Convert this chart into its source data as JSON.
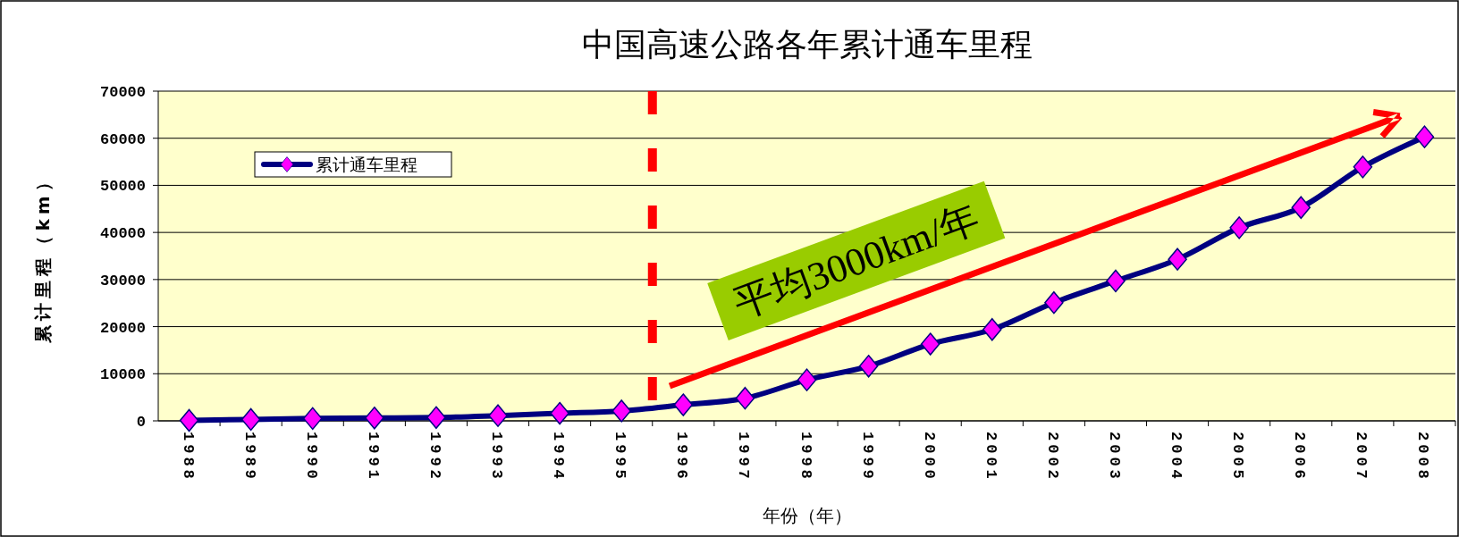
{
  "chart_data": {
    "type": "line",
    "title": "中国高速公路各年累计通车里程",
    "xlabel": "年份（年）",
    "ylabel": "累计里程（km）",
    "x": [
      1988,
      1989,
      1990,
      1991,
      1992,
      1993,
      1994,
      1995,
      1996,
      1997,
      1998,
      1999,
      2000,
      2001,
      2002,
      2003,
      2004,
      2005,
      2006,
      2007,
      2008
    ],
    "series": [
      {
        "name": "累计通车里程",
        "color": "#000080",
        "values": [
          100,
          300,
          500,
          600,
          700,
          1100,
          1600,
          2100,
          3400,
          4800,
          8700,
          11600,
          16300,
          19400,
          25100,
          29700,
          34300,
          41000,
          45300,
          53900,
          60300
        ]
      }
    ],
    "xlim": [
      1987.5,
      2008.5
    ],
    "xticks": [
      1988,
      1989,
      1990,
      1991,
      1992,
      1993,
      1994,
      1995,
      1996,
      1997,
      1998,
      1999,
      2000,
      2001,
      2002,
      2003,
      2004,
      2005,
      2006,
      2007,
      2008
    ],
    "ylim": [
      0,
      70000
    ],
    "yticks": [
      0,
      10000,
      20000,
      30000,
      40000,
      50000,
      60000,
      70000
    ],
    "ref_lines": [
      {
        "axis": "x",
        "value": 1995.5,
        "color": "#ff0000",
        "line_style": "dashed"
      }
    ],
    "annotations": [
      "平均3000km/年"
    ],
    "grid": "y",
    "legend": "top left",
    "marker": "diamond",
    "line_style": "solid"
  }
}
